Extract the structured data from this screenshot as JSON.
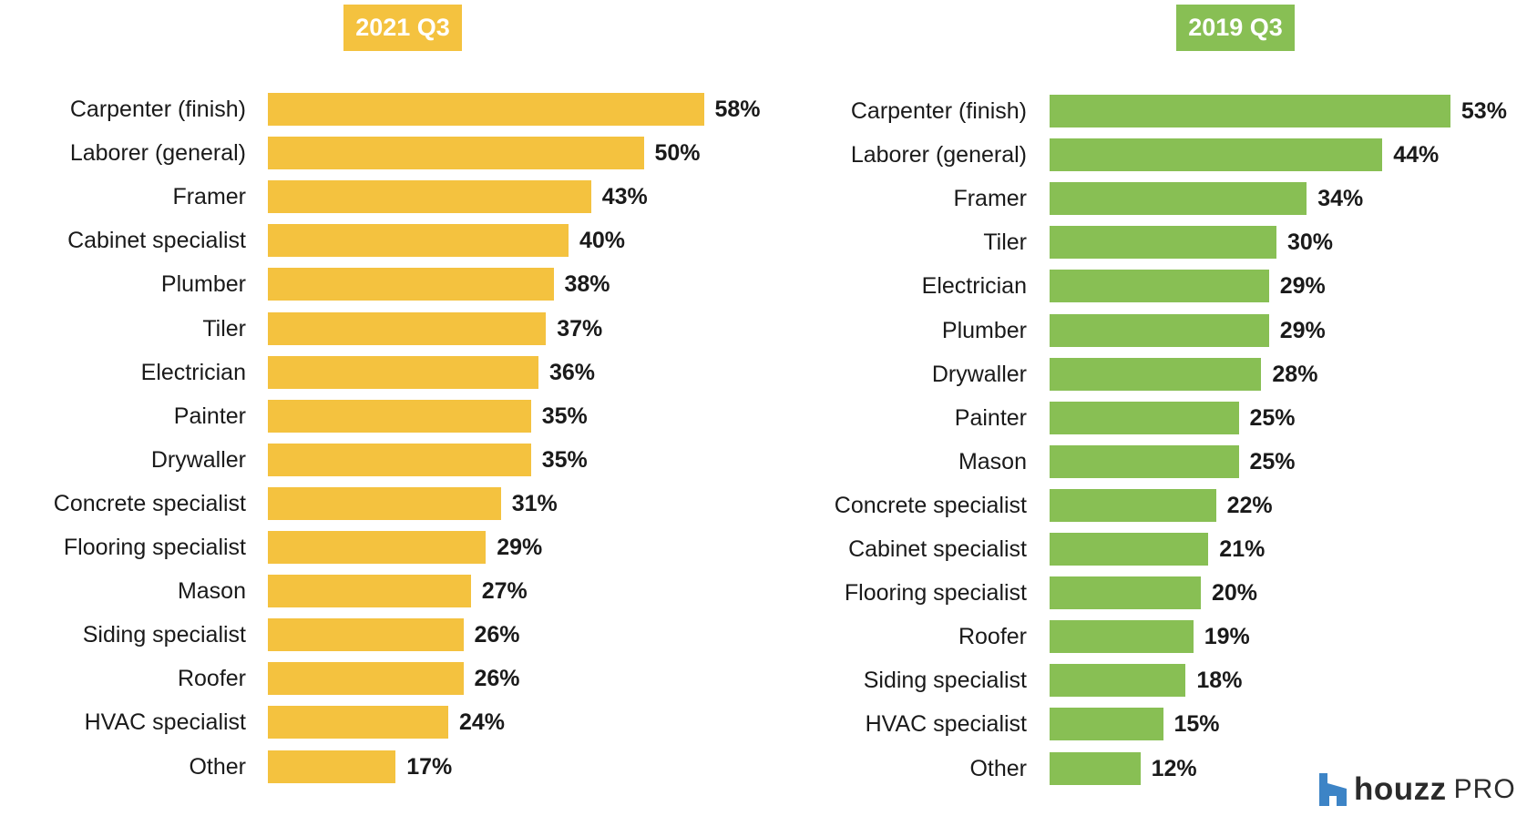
{
  "chart_data": [
    {
      "type": "bar",
      "orientation": "horizontal",
      "title": "2021 Q3",
      "color": "#F4C23F",
      "unit": "%",
      "categories": [
        "Carpenter (finish)",
        "Laborer (general)",
        "Framer",
        "Cabinet specialist",
        "Plumber",
        "Tiler",
        "Electrician",
        "Painter",
        "Drywaller",
        "Concrete specialist",
        "Flooring specialist",
        "Mason",
        "Siding specialist",
        "Roofer",
        "HVAC specialist",
        "Other"
      ],
      "values": [
        58,
        50,
        43,
        40,
        38,
        37,
        36,
        35,
        35,
        31,
        29,
        27,
        26,
        26,
        24,
        17
      ],
      "value_labels": [
        "58%",
        "50%",
        "43%",
        "40%",
        "38%",
        "37%",
        "36%",
        "35%",
        "35%",
        "31%",
        "29%",
        "27%",
        "26%",
        "26%",
        "24%",
        "17%"
      ],
      "grid": false,
      "legend": "none"
    },
    {
      "type": "bar",
      "orientation": "horizontal",
      "title": "2019 Q3",
      "color": "#88BF54",
      "unit": "%",
      "categories": [
        "Carpenter (finish)",
        "Laborer (general)",
        "Framer",
        "Tiler",
        "Electrician",
        "Plumber",
        "Drywaller",
        "Painter",
        "Mason",
        "Concrete specialist",
        "Cabinet specialist",
        "Flooring specialist",
        "Roofer",
        "Siding specialist",
        "HVAC specialist",
        "Other"
      ],
      "values": [
        53,
        44,
        34,
        30,
        29,
        29,
        28,
        25,
        25,
        22,
        21,
        20,
        19,
        18,
        15,
        12
      ],
      "value_labels": [
        "53%",
        "44%",
        "34%",
        "30%",
        "29%",
        "29%",
        "28%",
        "25%",
        "25%",
        "22%",
        "21%",
        "20%",
        "19%",
        "18%",
        "15%",
        "12%"
      ],
      "grid": false,
      "legend": "none"
    }
  ],
  "brand": {
    "name": "houzz",
    "suffix": "PRO",
    "icon": "houzz-logo-icon",
    "icon_color": "#3D84C6"
  }
}
